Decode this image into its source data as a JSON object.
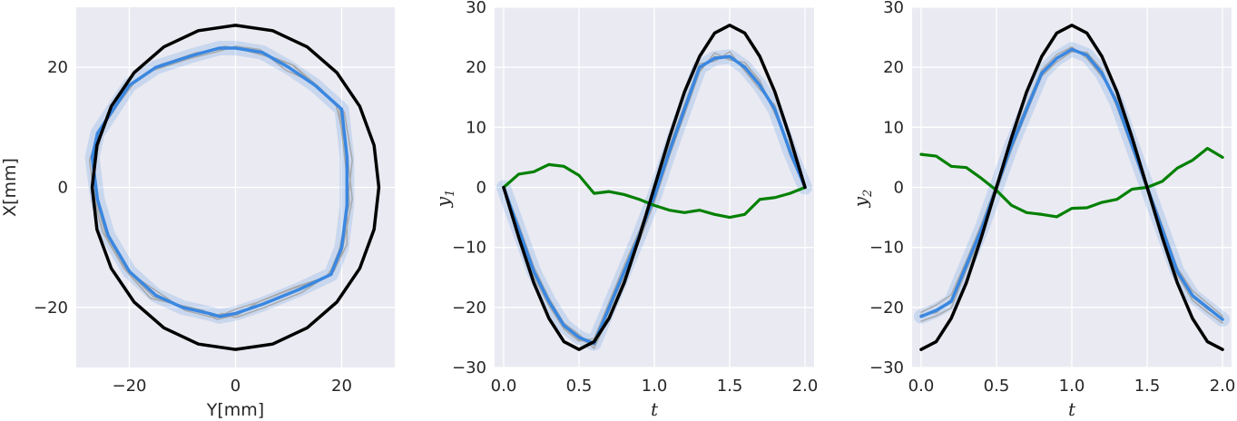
{
  "chart_data": [
    {
      "type": "line",
      "panel": "xy",
      "xlabel": "Y[mm]",
      "ylabel": "X[mm]",
      "xlim": [
        -30,
        30
      ],
      "ylim": [
        -30,
        30
      ],
      "xticks": [
        -20,
        0,
        20
      ],
      "xtick_labels": [
        "−20",
        "0",
        "20"
      ],
      "yticks": [
        -20,
        0,
        20
      ],
      "ytick_labels": [
        "−20",
        "0",
        "20"
      ],
      "grid": true,
      "series": [
        {
          "role": "reference",
          "color": "#000000",
          "x": [
            0,
            7.0,
            13.5,
            19.1,
            23.4,
            26.1,
            27.0,
            26.1,
            23.4,
            19.1,
            13.5,
            7.0,
            0,
            -7.0,
            -13.5,
            -19.1,
            -23.4,
            -26.1,
            -27.0,
            -26.1,
            -23.4,
            -19.1,
            -13.5,
            -7.0,
            0
          ],
          "y": [
            27.0,
            26.1,
            23.4,
            19.1,
            13.5,
            7.0,
            0,
            -7.0,
            -13.5,
            -19.1,
            -23.4,
            -26.1,
            -27.0,
            -26.1,
            -23.4,
            -19.1,
            -13.5,
            -7.0,
            0,
            7.0,
            13.5,
            19.1,
            23.4,
            26.1,
            27.0
          ]
        },
        {
          "role": "mean",
          "color": "#3a87e0",
          "x": [
            -27,
            -26,
            -23,
            -20,
            -15,
            -8,
            -3,
            0,
            5,
            10,
            15,
            20,
            21,
            21,
            20,
            18,
            12,
            5,
            0,
            -3,
            -5,
            -10,
            -15,
            -20,
            -24,
            -26,
            -27
          ],
          "y": [
            5,
            9,
            13,
            17,
            20,
            22,
            23.2,
            23.2,
            22.5,
            20,
            17,
            13,
            5,
            -3,
            -10,
            -14.5,
            -17,
            -19.5,
            -21,
            -21.5,
            -21,
            -20,
            -18,
            -14,
            -8,
            -2,
            5
          ]
        },
        {
          "role": "trial",
          "color": "#a9a9a9",
          "x": [
            -26,
            -25,
            -22,
            -19,
            -14,
            -7,
            -2,
            1,
            6,
            11,
            16,
            19,
            21,
            22,
            20,
            17,
            11,
            4,
            0,
            -4,
            -6,
            -11,
            -16,
            -21,
            -25,
            -27,
            -26
          ],
          "y": [
            6,
            10,
            14,
            17.5,
            20.5,
            22.2,
            23.5,
            23.0,
            21.8,
            20.3,
            16.5,
            13.5,
            6,
            -2,
            -11,
            -15,
            -16.8,
            -19.2,
            -20.3,
            -21.8,
            -20.5,
            -19.5,
            -18.5,
            -13.5,
            -7.5,
            -1,
            6
          ]
        },
        {
          "role": "trial",
          "color": "#a9a9a9",
          "x": [
            -27.5,
            -26,
            -23.5,
            -20.5,
            -15.5,
            -8.5,
            -3,
            0,
            4.5,
            9.5,
            14.5,
            20.5,
            22,
            21,
            21,
            18.5,
            12.5,
            5.5,
            0,
            -2.5,
            -4.5,
            -9.5,
            -14.5,
            -19.5,
            -23.5,
            -26.5,
            -27.5
          ],
          "y": [
            4.5,
            8.5,
            12.5,
            16.5,
            19.5,
            21.5,
            22.7,
            23.5,
            23.0,
            19.5,
            17.5,
            12.5,
            4.5,
            -3.5,
            -9.5,
            -14.0,
            -17.5,
            -20.0,
            -21.7,
            -21.0,
            -21.6,
            -20.5,
            -17.5,
            -14.5,
            -8.5,
            -2.5,
            4.5
          ]
        },
        {
          "role": "trial",
          "color": "#a9a9a9",
          "x": [
            -26.5,
            -25.5,
            -22.5,
            -19.5,
            -14.5,
            -7.5,
            -2.5,
            0.5,
            5.5,
            10.5,
            15.5,
            19.5,
            20.5,
            21.5,
            19.5,
            17.5,
            11.5,
            4.5,
            0.5,
            -3.5,
            -5.5,
            -10.5,
            -15.5,
            -20.5,
            -24.5,
            -26.5,
            -26.5
          ],
          "y": [
            5.5,
            9.5,
            13.5,
            17.3,
            20.3,
            22.4,
            23.0,
            23.3,
            22.2,
            20.5,
            16.7,
            13.3,
            5.5,
            -2.5,
            -10.5,
            -14.8,
            -16.5,
            -19.0,
            -21.2,
            -22.0,
            -20.8,
            -19.8,
            -18.2,
            -13.8,
            -7.8,
            -1.5,
            5.5
          ]
        },
        {
          "role": "control",
          "color": "#008000",
          "visible": false,
          "x": [],
          "y": []
        }
      ]
    },
    {
      "type": "line",
      "panel": "y1",
      "xlabel": "t",
      "ylabel": "y",
      "ylabel_sub": "1",
      "xlim": [
        -0.06,
        2.06
      ],
      "ylim": [
        -30,
        30
      ],
      "xticks": [
        0.0,
        0.5,
        1.0,
        1.5,
        2.0
      ],
      "xtick_labels": [
        "0.0",
        "0.5",
        "1.0",
        "1.5",
        "2.0"
      ],
      "yticks": [
        -30,
        -20,
        -10,
        0,
        10,
        20,
        30
      ],
      "ytick_labels": [
        "−30",
        "−20",
        "−10",
        "0",
        "10",
        "20",
        "30"
      ],
      "grid": true,
      "series": [
        {
          "role": "reference",
          "color": "#000000",
          "x": [
            0,
            0.1,
            0.2,
            0.3,
            0.4,
            0.5,
            0.6,
            0.7,
            0.8,
            0.9,
            1.0,
            1.1,
            1.2,
            1.3,
            1.4,
            1.5,
            1.6,
            1.7,
            1.8,
            1.9,
            2.0
          ],
          "y": [
            0,
            -8.3,
            -15.9,
            -21.8,
            -25.7,
            -27.0,
            -25.7,
            -21.8,
            -15.9,
            -8.3,
            0,
            8.3,
            15.9,
            21.8,
            25.7,
            27.0,
            25.7,
            21.8,
            15.9,
            8.3,
            0
          ]
        },
        {
          "role": "mean",
          "color": "#3a87e0",
          "x": [
            0,
            0.1,
            0.2,
            0.3,
            0.4,
            0.5,
            0.6,
            0.7,
            0.8,
            0.9,
            1.0,
            1.1,
            1.2,
            1.3,
            1.4,
            1.5,
            1.6,
            1.7,
            1.8,
            1.9,
            2.0
          ],
          "y": [
            0,
            -7,
            -14,
            -19,
            -23,
            -25,
            -26,
            -20,
            -14,
            -8,
            -1.5,
            6,
            13,
            20,
            21.5,
            21.8,
            20,
            17,
            13,
            6,
            0
          ]
        },
        {
          "role": "trial",
          "color": "#a9a9a9",
          "x": [
            0,
            0.1,
            0.2,
            0.3,
            0.4,
            0.5,
            0.6,
            0.7,
            0.8,
            0.9,
            1.0,
            1.1,
            1.2,
            1.3,
            1.4,
            1.5,
            1.6,
            1.7,
            1.8,
            1.9,
            2.0
          ],
          "y": [
            0,
            -6.2,
            -13.2,
            -18.4,
            -22.6,
            -24.5,
            -26.8,
            -21.5,
            -15.2,
            -9.0,
            -2.5,
            5.2,
            12.1,
            19.2,
            22.4,
            21.2,
            20.8,
            17.8,
            12.2,
            6.8,
            0
          ]
        },
        {
          "role": "trial",
          "color": "#a9a9a9",
          "x": [
            0,
            0.1,
            0.2,
            0.3,
            0.4,
            0.5,
            0.6,
            0.7,
            0.8,
            0.9,
            1.0,
            1.1,
            1.2,
            1.3,
            1.4,
            1.5,
            1.6,
            1.7,
            1.8,
            1.9,
            2.0
          ],
          "y": [
            0,
            -7.8,
            -14.9,
            -19.7,
            -23.6,
            -25.6,
            -25.2,
            -19.1,
            -13.0,
            -7.2,
            -0.8,
            6.9,
            13.8,
            20.6,
            21.0,
            22.6,
            19.4,
            16.3,
            13.7,
            5.3,
            0
          ]
        },
        {
          "role": "trial",
          "color": "#a9a9a9",
          "x": [
            0,
            0.1,
            0.2,
            0.3,
            0.4,
            0.5,
            0.6,
            0.7,
            0.8,
            0.9,
            1.0,
            1.1,
            1.2,
            1.3,
            1.4,
            1.5,
            1.6,
            1.7,
            1.8,
            1.9,
            2.0
          ],
          "y": [
            0,
            -6.8,
            -14.4,
            -18.6,
            -23.3,
            -25.3,
            -26.3,
            -20.6,
            -14.6,
            -8.5,
            -1.9,
            5.6,
            13.4,
            19.6,
            21.8,
            21.5,
            20.3,
            17.4,
            12.6,
            6.2,
            0
          ]
        },
        {
          "role": "control",
          "color": "#008000",
          "x": [
            0,
            0.1,
            0.2,
            0.3,
            0.4,
            0.5,
            0.6,
            0.7,
            0.8,
            0.9,
            1.0,
            1.1,
            1.2,
            1.3,
            1.4,
            1.5,
            1.6,
            1.7,
            1.8,
            1.9,
            2.0
          ],
          "y": [
            0,
            2.2,
            2.6,
            3.8,
            3.5,
            2.0,
            -1.0,
            -0.7,
            -1.2,
            -2.0,
            -3.0,
            -3.8,
            -4.2,
            -3.8,
            -4.5,
            -5.0,
            -4.5,
            -2.0,
            -1.7,
            -1.0,
            0
          ]
        }
      ]
    },
    {
      "type": "line",
      "panel": "y2",
      "xlabel": "t",
      "ylabel": "y",
      "ylabel_sub": "2",
      "xlim": [
        -0.06,
        2.06
      ],
      "ylim": [
        -30,
        30
      ],
      "xticks": [
        0.0,
        0.5,
        1.0,
        1.5,
        2.0
      ],
      "xtick_labels": [
        "0.0",
        "0.5",
        "1.0",
        "1.5",
        "2.0"
      ],
      "yticks": [
        -30,
        -20,
        -10,
        0,
        10,
        20,
        30
      ],
      "ytick_labels": [
        "−30",
        "−20",
        "−10",
        "0",
        "10",
        "20",
        "30"
      ],
      "grid": true,
      "series": [
        {
          "role": "reference",
          "color": "#000000",
          "x": [
            0,
            0.1,
            0.2,
            0.3,
            0.4,
            0.5,
            0.6,
            0.7,
            0.8,
            0.9,
            1.0,
            1.1,
            1.2,
            1.3,
            1.4,
            1.5,
            1.6,
            1.7,
            1.8,
            1.9,
            2.0
          ],
          "y": [
            -27.0,
            -25.7,
            -21.8,
            -15.9,
            -8.3,
            0,
            8.3,
            15.9,
            21.8,
            25.7,
            27.0,
            25.7,
            21.8,
            15.9,
            8.3,
            0,
            -8.3,
            -15.9,
            -21.8,
            -25.7,
            -27.0
          ]
        },
        {
          "role": "mean",
          "color": "#3a87e0",
          "x": [
            0,
            0.1,
            0.2,
            0.3,
            0.4,
            0.5,
            0.6,
            0.7,
            0.8,
            0.9,
            1.0,
            1.1,
            1.2,
            1.3,
            1.4,
            1.5,
            1.6,
            1.7,
            1.8,
            1.9,
            2.0
          ],
          "y": [
            -21.5,
            -20.5,
            -19,
            -13,
            -7,
            0,
            7,
            13,
            19,
            21.5,
            23,
            22,
            19,
            14,
            7,
            0,
            -7,
            -14,
            -18,
            -20,
            -22
          ]
        },
        {
          "role": "trial",
          "color": "#a9a9a9",
          "x": [
            0,
            0.1,
            0.2,
            0.3,
            0.4,
            0.5,
            0.6,
            0.7,
            0.8,
            0.9,
            1.0,
            1.1,
            1.2,
            1.3,
            1.4,
            1.5,
            1.6,
            1.7,
            1.8,
            1.9,
            2.0
          ],
          "y": [
            -20.8,
            -19.6,
            -17.9,
            -12.2,
            -6.1,
            0.6,
            7.8,
            13.7,
            19.6,
            22.1,
            23.4,
            21.5,
            18.4,
            14.8,
            7.6,
            0.5,
            -6.3,
            -13.4,
            -17.2,
            -19.3,
            -21.4
          ]
        },
        {
          "role": "trial",
          "color": "#a9a9a9",
          "x": [
            0,
            0.1,
            0.2,
            0.3,
            0.4,
            0.5,
            0.6,
            0.7,
            0.8,
            0.9,
            1.0,
            1.1,
            1.2,
            1.3,
            1.4,
            1.5,
            1.6,
            1.7,
            1.8,
            1.9,
            2.0
          ],
          "y": [
            -22.3,
            -21.4,
            -20.1,
            -13.8,
            -7.8,
            -0.7,
            6.3,
            12.4,
            18.5,
            20.9,
            22.6,
            22.5,
            19.6,
            13.3,
            6.4,
            -0.6,
            -7.8,
            -14.6,
            -18.8,
            -20.8,
            -22.6
          ]
        },
        {
          "role": "trial",
          "color": "#a9a9a9",
          "x": [
            0,
            0.1,
            0.2,
            0.3,
            0.4,
            0.5,
            0.6,
            0.7,
            0.8,
            0.9,
            1.0,
            1.1,
            1.2,
            1.3,
            1.4,
            1.5,
            1.6,
            1.7,
            1.8,
            1.9,
            2.0
          ],
          "y": [
            -21.2,
            -20.9,
            -18.6,
            -13.4,
            -6.7,
            0.2,
            6.8,
            13.2,
            18.9,
            21.7,
            22.9,
            22.2,
            18.7,
            14.3,
            6.8,
            0.3,
            -7.2,
            -13.8,
            -18.3,
            -20.3,
            -21.7
          ]
        },
        {
          "role": "control",
          "color": "#008000",
          "x": [
            0,
            0.1,
            0.2,
            0.3,
            0.4,
            0.5,
            0.6,
            0.7,
            0.8,
            0.9,
            1.0,
            1.1,
            1.2,
            1.3,
            1.4,
            1.5,
            1.6,
            1.7,
            1.8,
            1.9,
            2.0
          ],
          "y": [
            5.5,
            5.2,
            3.5,
            3.3,
            1.5,
            -0.5,
            -3.0,
            -4.2,
            -4.5,
            -4.9,
            -3.5,
            -3.4,
            -2.5,
            -2.0,
            -0.3,
            0,
            1.0,
            3.2,
            4.5,
            6.5,
            5.0
          ]
        }
      ]
    }
  ]
}
